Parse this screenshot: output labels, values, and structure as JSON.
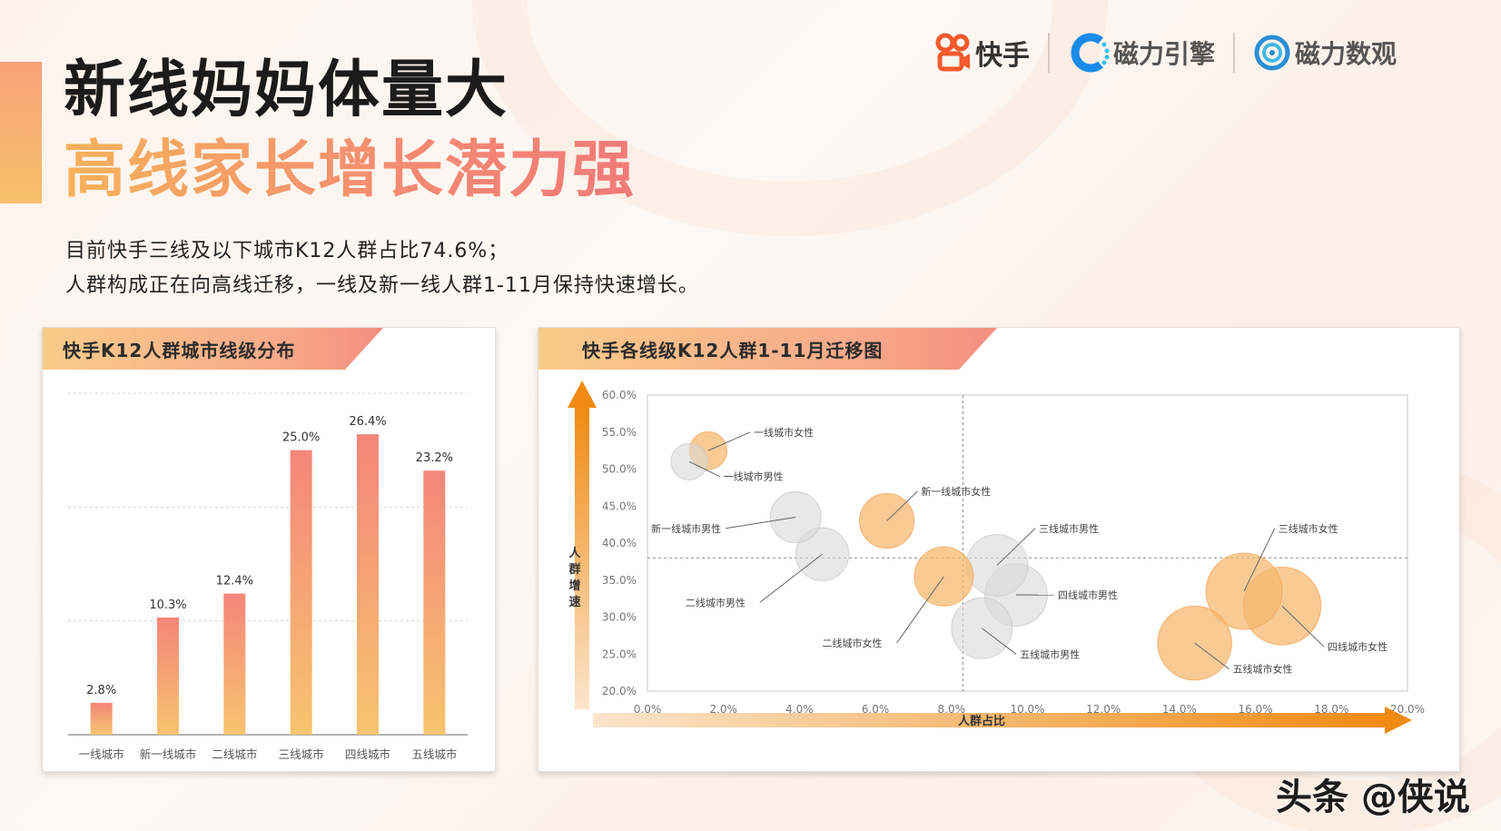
{
  "header": {
    "title_line1": "新线妈妈体量大",
    "title_line2": "高线家长增长潜力强",
    "desc_line1": "目前快手三线及以下城市K12人群占比74.6%；",
    "desc_line2": "人群构成正在向高线迁移，一线及新一线人群1-11月保持快速增长。"
  },
  "logos": {
    "kuaishou": "快手",
    "cili_engine": "磁力引擎",
    "cili_data": "磁力数观",
    "kuaishou_icon": "kuaishou-logo-icon",
    "cili_engine_icon": "cili-engine-logo-icon",
    "cili_data_icon": "cili-data-logo-icon"
  },
  "watermark": "头条 @侠说",
  "colors": {
    "accent_orange": "#f5a24a",
    "accent_coral": "#f47e72",
    "bubble_female": "#f5b870",
    "bubble_male": "#d8d8d8"
  },
  "chart_data": [
    {
      "type": "bar",
      "title": "快手K12人群城市线级分布",
      "categories": [
        "一线城市",
        "新一线城市",
        "二线城市",
        "三线城市",
        "四线城市",
        "五线城市"
      ],
      "values": [
        2.8,
        10.3,
        12.4,
        25.0,
        26.4,
        23.2
      ],
      "value_labels": [
        "2.8%",
        "10.3%",
        "12.4%",
        "25.0%",
        "26.4%",
        "23.2%"
      ],
      "ylim": [
        0,
        30
      ],
      "grid": true
    },
    {
      "type": "scatter",
      "title": "快手各线级K12人群1-11月迁移图",
      "xlabel": "人群占比",
      "ylabel": "人群增速",
      "xlim": [
        0,
        20
      ],
      "ylim": [
        20,
        60
      ],
      "x_ticks": [
        "0.0%",
        "2.0%",
        "4.0%",
        "6.0%",
        "8.0%",
        "10.0%",
        "12.0%",
        "14.0%",
        "16.0%",
        "18.0%",
        "20.0%"
      ],
      "y_ticks": [
        "20.0%",
        "25.0%",
        "30.0%",
        "35.0%",
        "40.0%",
        "45.0%",
        "50.0%",
        "55.0%",
        "60.0%"
      ],
      "reference_lines": {
        "x": 8.3,
        "y": 38.0
      },
      "points": [
        {
          "name": "一线城市女性",
          "x": 1.6,
          "y": 52.5,
          "size": 2.8,
          "group": "female",
          "label_x": 2.8,
          "label_y": 54.5
        },
        {
          "name": "一线城市男性",
          "x": 1.1,
          "y": 51.0,
          "size": 2.5,
          "group": "male",
          "label_x": 2.0,
          "label_y": 48.5
        },
        {
          "name": "新一线城市女性",
          "x": 6.3,
          "y": 43.0,
          "size": 10.0,
          "group": "female",
          "label_x": 7.2,
          "label_y": 46.5
        },
        {
          "name": "新一线城市男性",
          "x": 3.9,
          "y": 43.5,
          "size": 8.0,
          "group": "male",
          "label_x": 0.1,
          "label_y": 41.5
        },
        {
          "name": "二线城市男性",
          "x": 4.6,
          "y": 38.5,
          "size": 9.0,
          "group": "male",
          "label_x": 1.0,
          "label_y": 31.5
        },
        {
          "name": "二线城市女性",
          "x": 7.8,
          "y": 35.5,
          "size": 12.4,
          "group": "female",
          "label_x": 4.6,
          "label_y": 26.0
        },
        {
          "name": "三线城市男性",
          "x": 9.2,
          "y": 37.0,
          "size": 14.0,
          "group": "male",
          "label_x": 10.3,
          "label_y": 41.5
        },
        {
          "name": "四线城市男性",
          "x": 9.7,
          "y": 33.0,
          "size": 14.5,
          "group": "male",
          "label_x": 10.8,
          "label_y": 32.5
        },
        {
          "name": "五线城市男性",
          "x": 8.8,
          "y": 28.5,
          "size": 13.5,
          "group": "male",
          "label_x": 9.8,
          "label_y": 24.5
        },
        {
          "name": "三线城市女性",
          "x": 15.7,
          "y": 33.5,
          "size": 25.0,
          "group": "female",
          "label_x": 16.6,
          "label_y": 41.5
        },
        {
          "name": "四线城市女性",
          "x": 16.7,
          "y": 31.5,
          "size": 26.4,
          "group": "female",
          "label_x": 17.9,
          "label_y": 25.5
        },
        {
          "name": "五线城市女性",
          "x": 14.4,
          "y": 26.5,
          "size": 23.2,
          "group": "female",
          "label_x": 15.4,
          "label_y": 22.5
        }
      ]
    }
  ]
}
